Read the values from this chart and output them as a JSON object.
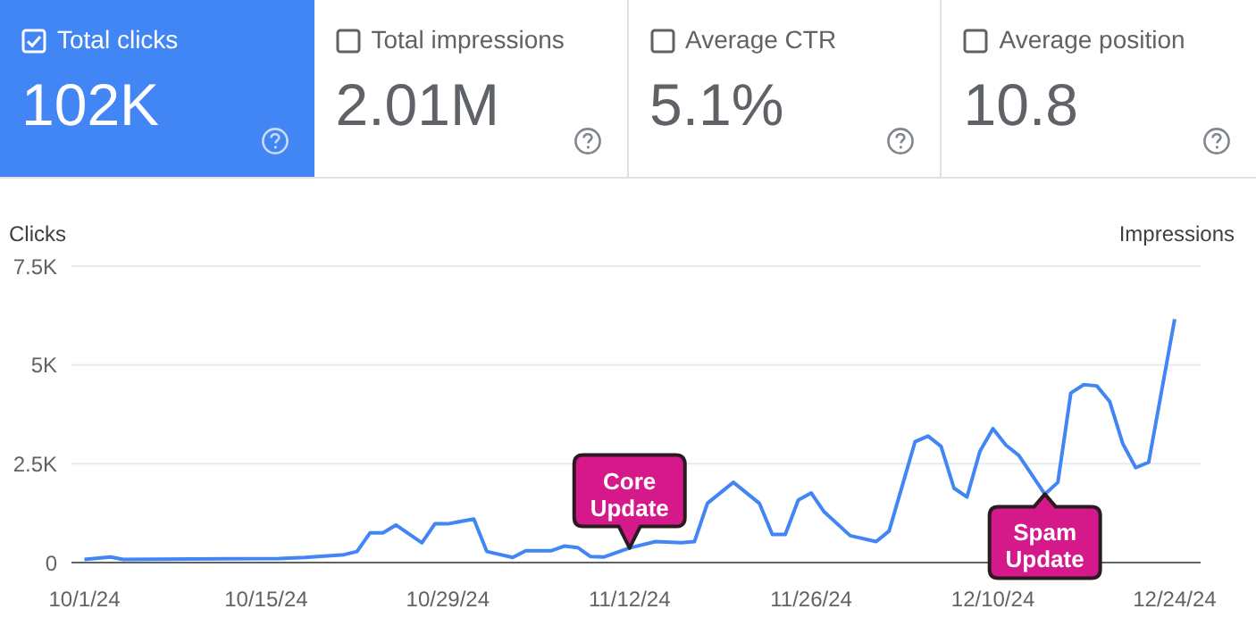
{
  "chart_data": {
    "type": "line",
    "ylabel": "Clicks",
    "y2label": "Impressions",
    "annotations": [
      "Total clicks",
      "102K",
      "Total impressions",
      "2.01M",
      "Average CTR",
      "5.1%",
      "Average position",
      "10.8",
      {
        "text": "Core Update",
        "x": "--11-12",
        "y": 370
      },
      {
        "text": "Spam Update",
        "x": "--12-14",
        "y": 1730
      }
    ],
    "x": [
      "--10-01",
      "--10-03",
      "--10-04",
      "--10-16",
      "--10-18",
      "--10-21",
      "--10-22",
      "--10-23",
      "--10-24",
      "--10-25",
      "--10-27",
      "--10-28",
      "--10-29",
      "--10-31",
      "--11-01",
      "--11-03",
      "--11-04",
      "--11-06",
      "--11-07",
      "--11-08",
      "--11-09",
      "--11-10",
      "--11-12",
      "--11-14",
      "--11-16",
      "--11-17",
      "--11-18",
      "--11-20",
      "--11-22",
      "--11-23",
      "--11-24",
      "--11-25",
      "--11-26",
      "--11-27",
      "--11-29",
      "--12-01",
      "--12-02",
      "--12-04",
      "--12-05",
      "--12-06",
      "--12-07",
      "--12-08",
      "--12-09",
      "--12-10",
      "--12-11",
      "--12-12",
      "--12-14",
      "--12-15",
      "--12-16",
      "--12-17",
      "--12-18",
      "--12-19",
      "--12-20",
      "--12-21",
      "--12-22",
      "--12-24"
    ],
    "series": [
      {
        "color": "#4285f4",
        "values": [
          80,
          140,
          80,
          100,
          130,
          200,
          280,
          750,
          750,
          950,
          500,
          980,
          980,
          1100,
          280,
          130,
          300,
          300,
          420,
          380,
          150,
          140,
          370,
          530,
          500,
          530,
          1500,
          2030,
          1500,
          710,
          710,
          1580,
          1760,
          1280,
          680,
          530,
          800,
          3060,
          3200,
          2940,
          1880,
          1660,
          2820,
          3390,
          2970,
          2710,
          1730,
          2030,
          4290,
          4500,
          4470,
          4070,
          3010,
          2400,
          2540,
          6160
        ]
      }
    ],
    "xlim": [
      "--09-30",
      "--12-26"
    ],
    "xticks": [
      {
        "value": "--10-01",
        "label": "10/1/24"
      },
      {
        "value": "--10-15",
        "label": "10/15/24"
      },
      {
        "value": "--10-29",
        "label": "10/29/24"
      },
      {
        "value": "--11-12",
        "label": "11/12/24"
      },
      {
        "value": "--11-26",
        "label": "11/26/24"
      },
      {
        "value": "--12-10",
        "label": "12/10/24"
      },
      {
        "value": "--12-24",
        "label": "12/24/24"
      }
    ],
    "ylim": [
      0,
      7500
    ],
    "yticks": [
      0,
      {
        "value": 2500,
        "label": "2.5K"
      },
      {
        "value": 5000,
        "label": "5K"
      },
      {
        "value": 7500,
        "label": "7.5K"
      }
    ],
    "grid": "y",
    "marker": "none",
    "line_style": "solid"
  }
}
